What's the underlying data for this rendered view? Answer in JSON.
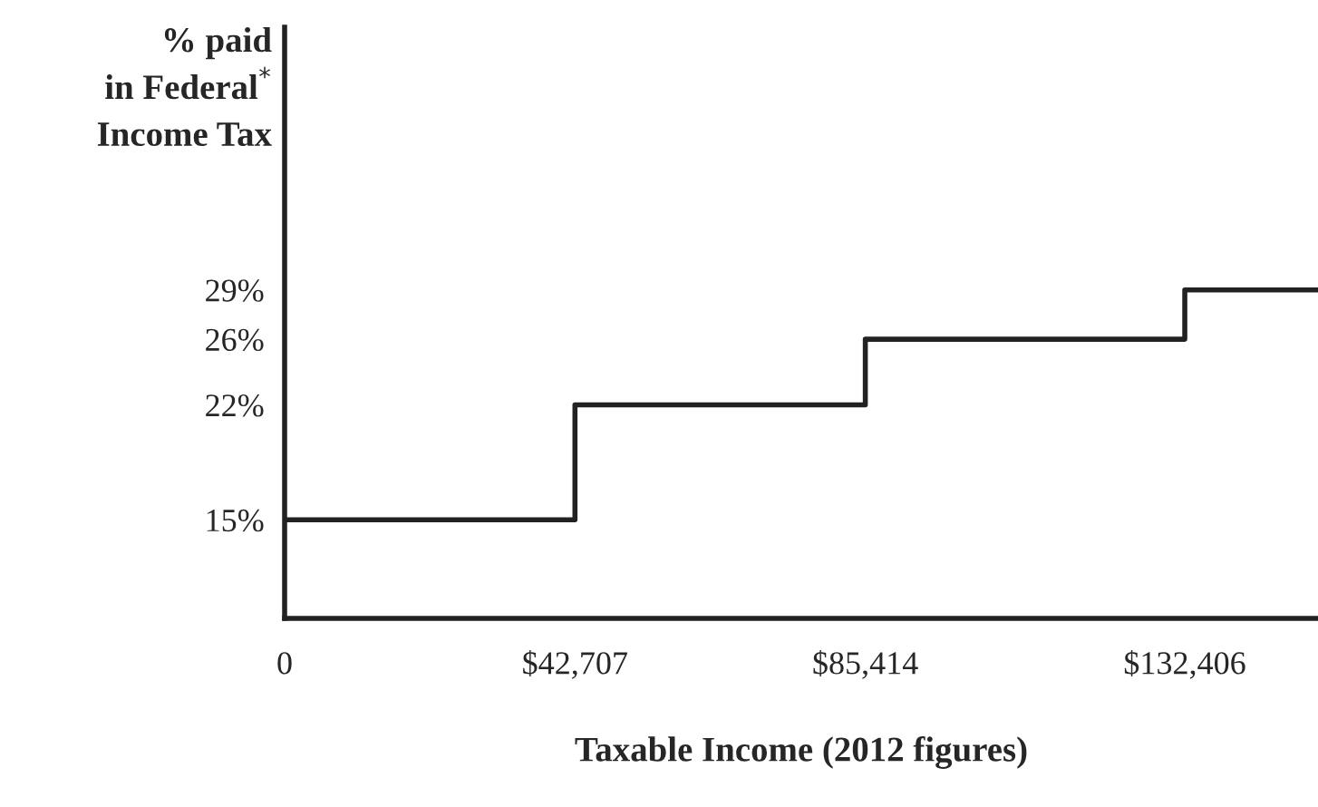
{
  "chart_data": {
    "type": "step",
    "ylabel": "% paid\nin Federal$^{*}$\nIncome Tax",
    "xlabel": "Taxable Income (2012 figures)",
    "x": [
      0,
      42707,
      85414,
      132406,
      152000
    ],
    "series": [
      {
        "color": "#222222",
        "values": [
          15,
          22,
          26,
          29,
          29
        ]
      }
    ],
    "xlim": [
      0,
      152000
    ],
    "ylim": [
      9,
      45
    ],
    "xticks": [
      {
        "value": 0,
        "label": "0"
      },
      {
        "value": 42707,
        "label": "$42,707"
      },
      {
        "value": 85414,
        "label": "$85,414"
      },
      {
        "value": 132406,
        "label": "$132,406"
      }
    ],
    "yticks": [
      {
        "value": 15,
        "label": "15%"
      },
      {
        "value": 22,
        "label": "22%"
      },
      {
        "value": 26,
        "label": "26%"
      },
      {
        "value": 29,
        "label": "29%"
      }
    ],
    "grid": false,
    "legend": false
  }
}
